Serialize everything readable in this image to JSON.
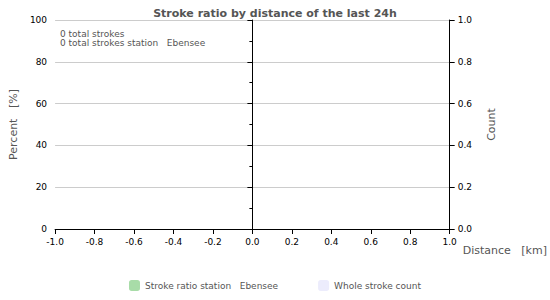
{
  "chart_data": {
    "type": "bar",
    "title": "Stroke ratio by distance of the last 24h",
    "annotations": [
      "0 total strokes",
      "0 total strokes station   Ebensee"
    ],
    "x_label": "Distance   [km]",
    "y_label": "Percent   [%]",
    "y2_label": "Count",
    "x": [],
    "series": [
      {
        "name": "Stroke ratio station   Ebensee",
        "color": "#a8dca8",
        "values": [],
        "axis": "y"
      },
      {
        "name": "Whole stroke count",
        "color": "#ececfc",
        "values": [],
        "axis": "y2"
      }
    ],
    "xlim": [
      -1,
      1
    ],
    "xticks": [
      {
        "value": -1,
        "label": "-1.0"
      },
      {
        "value": -0.8,
        "label": "-0.8"
      },
      {
        "value": -0.6,
        "label": "-0.6"
      },
      {
        "value": -0.4,
        "label": "-0.4"
      },
      {
        "value": -0.2,
        "label": "-0.2"
      },
      {
        "value": 0,
        "label": "0.0"
      },
      {
        "value": 0.2,
        "label": "0.2"
      },
      {
        "value": 0.4,
        "label": "0.4"
      },
      {
        "value": 0.6,
        "label": "0.6"
      },
      {
        "value": 0.8,
        "label": "0.8"
      },
      {
        "value": 1,
        "label": "1.0"
      }
    ],
    "ylim": [
      0,
      100
    ],
    "yticks": [
      0,
      20,
      40,
      60,
      80,
      100
    ],
    "y2lim": [
      0,
      1
    ],
    "y2ticks": [
      {
        "value": 0,
        "label": "0.0"
      },
      {
        "value": 0.2,
        "label": "0.2"
      },
      {
        "value": 0.4,
        "label": "0.4"
      },
      {
        "value": 0.6,
        "label": "0.6"
      },
      {
        "value": 0.8,
        "label": "0.8"
      },
      {
        "value": 1,
        "label": "1.0"
      }
    ],
    "grid": true,
    "legend": "bottom"
  }
}
